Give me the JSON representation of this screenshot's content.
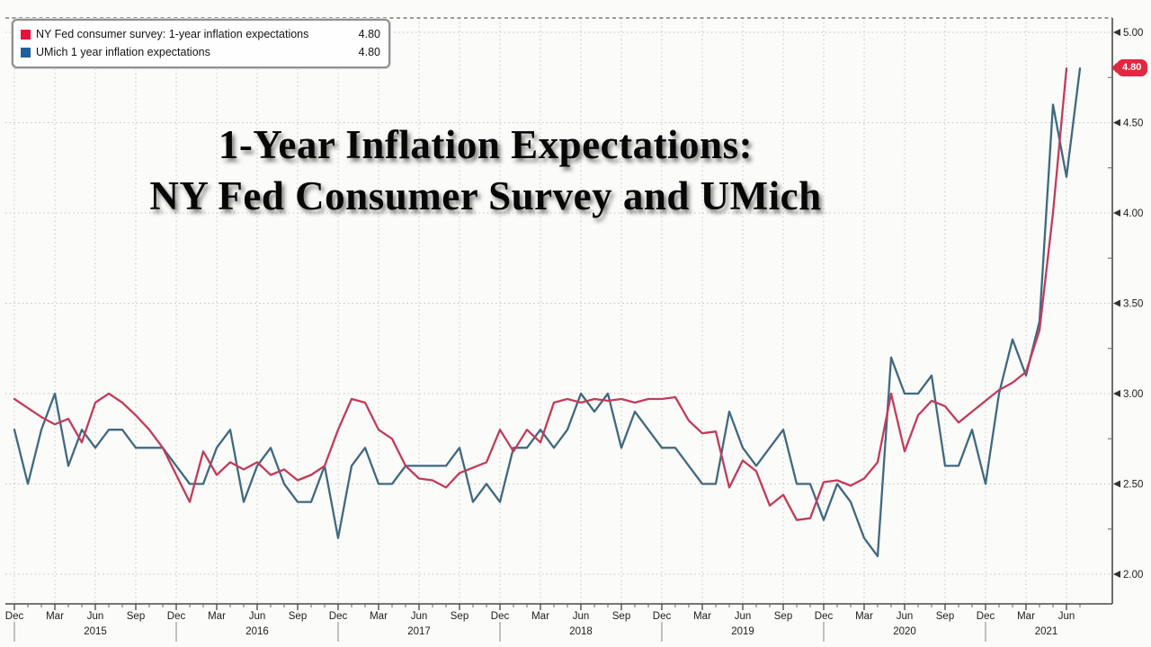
{
  "title": {
    "line1": "1-Year Inflation Expectations:",
    "line2": "NY Fed Consumer Survey and UMich"
  },
  "legend": {
    "items": [
      {
        "label": "NY Fed consumer survey: 1-year inflation expectations",
        "value": "4.80",
        "swatch_color": "#e8123d"
      },
      {
        "label": "UMich 1 year inflation expectations",
        "value": "4.80",
        "swatch_color": "#1f5f9e"
      }
    ]
  },
  "chart_data": {
    "type": "line",
    "title": "1-Year Inflation Expectations: NY Fed Consumer Survey and UMich",
    "x_unit": "month",
    "x_start_label": "Dec 2014",
    "x_end_label": "Jul 2021",
    "ylim": [
      1.84,
      5.08
    ],
    "y_ticks": [
      5.0,
      4.5,
      4.0,
      3.5,
      3.0,
      2.5,
      2.0
    ],
    "y_minor_ticks": [
      4.75,
      4.25,
      3.75,
      3.25,
      2.75,
      2.25
    ],
    "grid": "dotted; vertical each quarter, horizontal each 0.50",
    "legend_position": "top-left",
    "badge_value": "4.80",
    "badge_color": "#e32740",
    "x_quarter_labels": [
      "Dec",
      "Mar",
      "Jun",
      "Sep",
      "Dec",
      "Mar",
      "Jun",
      "Sep",
      "Dec",
      "Mar",
      "Jun",
      "Sep",
      "Dec",
      "Mar",
      "Jun",
      "Sep",
      "Dec",
      "Mar",
      "Jun",
      "Sep",
      "Dec",
      "Mar",
      "Jun",
      "Sep",
      "Dec",
      "Mar",
      "Jun"
    ],
    "x_year_labels": [
      {
        "label": "2015",
        "month_index": 6
      },
      {
        "label": "2016",
        "month_index": 18
      },
      {
        "label": "2017",
        "month_index": 30
      },
      {
        "label": "2018",
        "month_index": 42
      },
      {
        "label": "2019",
        "month_index": 54
      },
      {
        "label": "2020",
        "month_index": 66
      },
      {
        "label": "2021",
        "month_index": 76.5
      }
    ],
    "series": [
      {
        "name": "NY Fed consumer survey: 1-year inflation expectations",
        "color": "#c23b5b",
        "start": "2014-12",
        "end": "2021-06",
        "last_value": 4.8,
        "values": [
          2.97,
          2.92,
          2.87,
          2.83,
          2.86,
          2.73,
          2.95,
          3.0,
          2.95,
          2.88,
          2.8,
          2.7,
          2.55,
          2.4,
          2.68,
          2.55,
          2.62,
          2.58,
          2.62,
          2.55,
          2.58,
          2.52,
          2.55,
          2.6,
          2.8,
          2.97,
          2.95,
          2.8,
          2.75,
          2.6,
          2.53,
          2.52,
          2.48,
          2.56,
          2.59,
          2.62,
          2.8,
          2.68,
          2.8,
          2.73,
          2.95,
          2.97,
          2.95,
          2.97,
          2.96,
          2.97,
          2.95,
          2.97,
          2.97,
          2.98,
          2.85,
          2.78,
          2.79,
          2.48,
          2.63,
          2.57,
          2.38,
          2.44,
          2.3,
          2.31,
          2.51,
          2.52,
          2.49,
          2.53,
          2.62,
          3.0,
          2.68,
          2.88,
          2.96,
          2.93,
          2.84,
          2.9,
          2.96,
          3.02,
          3.06,
          3.12,
          3.35,
          4.0,
          4.8
        ]
      },
      {
        "name": "UMich 1 year inflation expectations",
        "color": "#3f6980",
        "start": "2014-12",
        "end": "2021-07",
        "last_value": 4.8,
        "values": [
          2.8,
          2.5,
          2.8,
          3.0,
          2.6,
          2.8,
          2.7,
          2.8,
          2.8,
          2.7,
          2.7,
          2.7,
          2.6,
          2.5,
          2.5,
          2.7,
          2.8,
          2.4,
          2.6,
          2.7,
          2.5,
          2.4,
          2.4,
          2.6,
          2.2,
          2.6,
          2.7,
          2.5,
          2.5,
          2.6,
          2.6,
          2.6,
          2.6,
          2.7,
          2.4,
          2.5,
          2.4,
          2.7,
          2.7,
          2.8,
          2.7,
          2.8,
          3.0,
          2.9,
          3.0,
          2.7,
          2.9,
          2.8,
          2.7,
          2.7,
          2.6,
          2.5,
          2.5,
          2.9,
          2.7,
          2.6,
          2.7,
          2.8,
          2.5,
          2.5,
          2.3,
          2.5,
          2.4,
          2.2,
          2.1,
          3.2,
          3.0,
          3.0,
          3.1,
          2.6,
          2.6,
          2.8,
          2.5,
          3.0,
          3.3,
          3.1,
          3.4,
          4.6,
          4.2,
          4.8
        ]
      }
    ]
  }
}
